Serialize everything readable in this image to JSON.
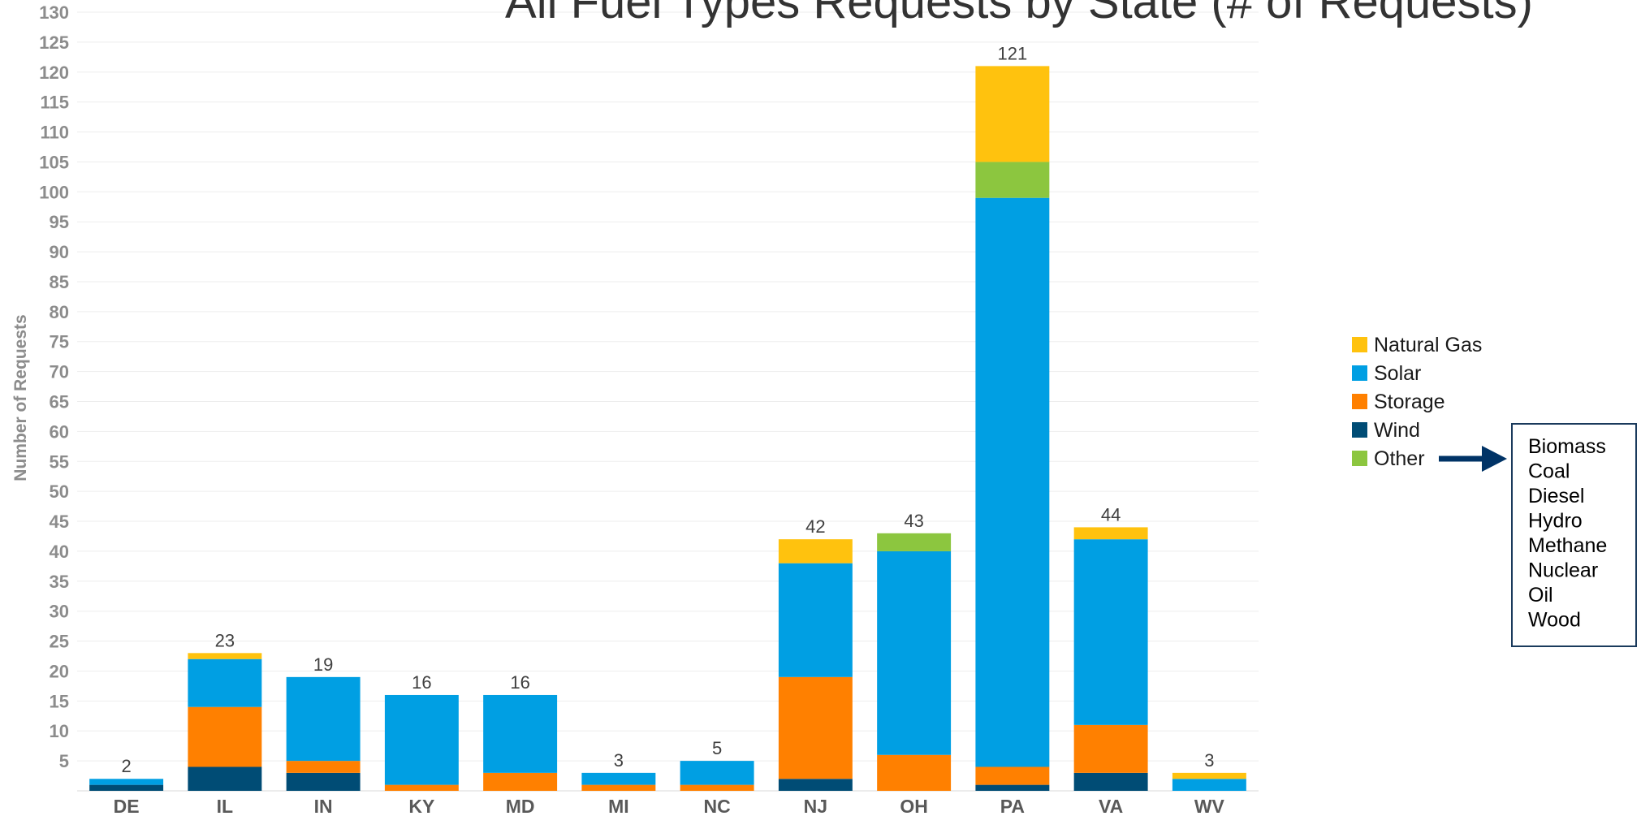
{
  "chart_data": {
    "type": "bar",
    "stacked": true,
    "title": "All Fuel Types Requests by State (# of Requests)",
    "ylabel": "Number of Requests",
    "xlabel": "",
    "ylim": [
      0,
      130
    ],
    "ytick_step": 5,
    "yticks": [
      "5",
      "10",
      "15",
      "20",
      "25",
      "30",
      "35",
      "40",
      "45",
      "50",
      "55",
      "60",
      "65",
      "70",
      "75",
      "80",
      "85",
      "90",
      "95",
      "100",
      "105",
      "110",
      "115",
      "120",
      "125",
      "130"
    ],
    "grid": true,
    "legend_position": "right",
    "categories": [
      "DE",
      "IL",
      "IN",
      "KY",
      "MD",
      "MI",
      "NC",
      "NJ",
      "OH",
      "PA",
      "VA",
      "WV"
    ],
    "series": [
      {
        "name": "Wind",
        "color": "#004C75",
        "values": [
          1,
          4,
          3,
          0,
          0,
          0,
          0,
          2,
          0,
          1,
          3,
          0
        ]
      },
      {
        "name": "Storage",
        "color": "#FF8000",
        "values": [
          0,
          10,
          2,
          1,
          3,
          1,
          1,
          17,
          6,
          3,
          8,
          0
        ]
      },
      {
        "name": "Solar",
        "color": "#009FE3",
        "values": [
          1,
          8,
          14,
          15,
          13,
          2,
          4,
          19,
          34,
          95,
          31,
          2
        ]
      },
      {
        "name": "Other",
        "color": "#8CC63F",
        "values": [
          0,
          0,
          0,
          0,
          0,
          0,
          0,
          0,
          3,
          6,
          0,
          0
        ]
      },
      {
        "name": "Natural Gas",
        "color": "#FFC20E",
        "values": [
          0,
          1,
          0,
          0,
          0,
          0,
          0,
          4,
          0,
          16,
          2,
          1
        ]
      }
    ],
    "totals": [
      "2",
      "23",
      "19",
      "16",
      "16",
      "3",
      "5",
      "42",
      "43",
      "121",
      "44",
      "3"
    ],
    "legend_order": [
      "Natural Gas",
      "Solar",
      "Storage",
      "Wind",
      "Other"
    ],
    "other_includes": [
      "Biomass",
      "Coal",
      "Diesel",
      "Hydro",
      "Methane",
      "Nuclear",
      "Oil",
      "Wood"
    ]
  }
}
